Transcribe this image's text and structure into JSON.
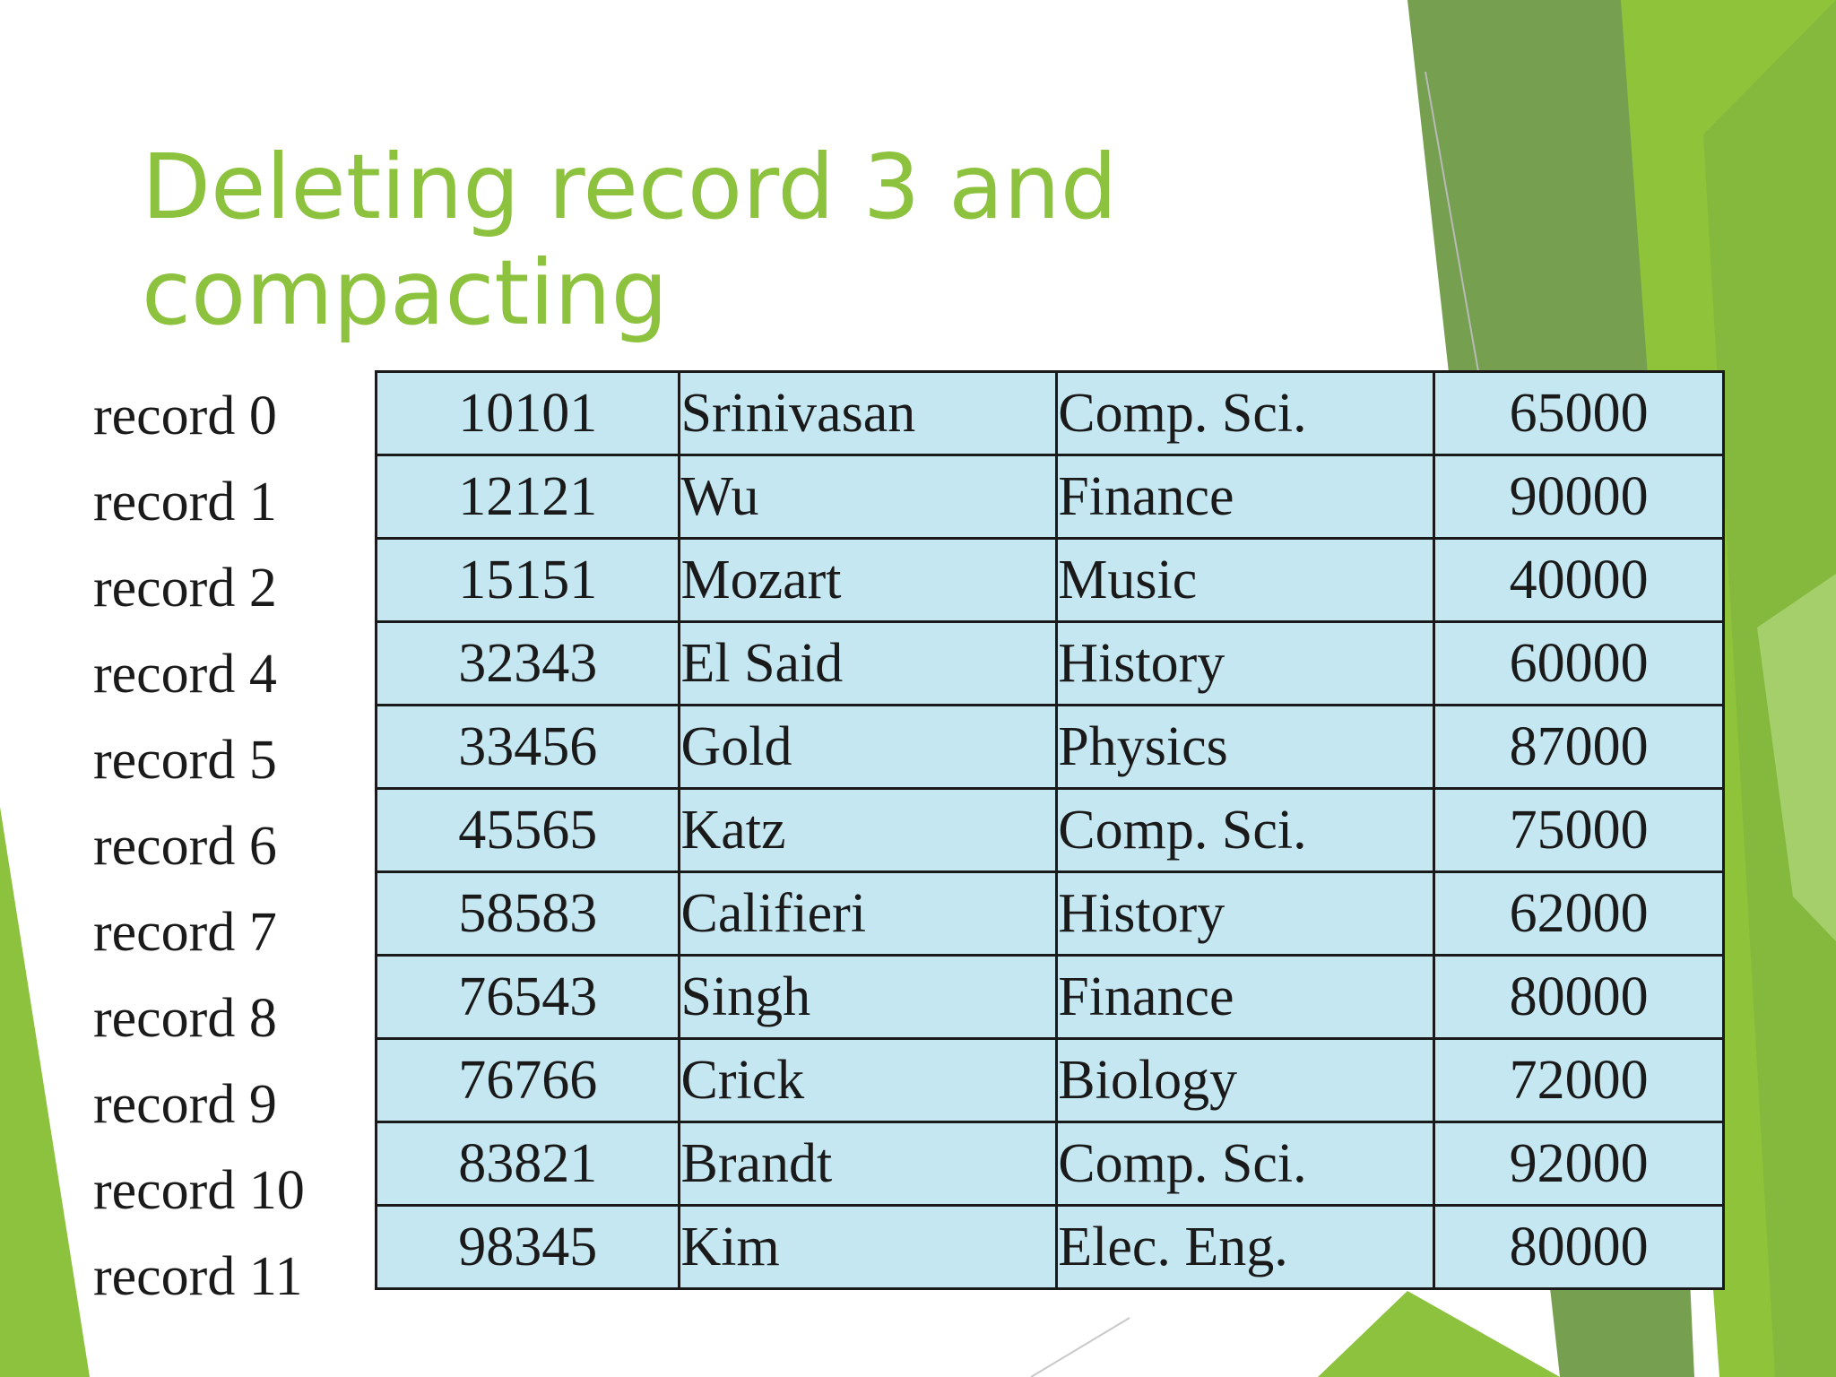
{
  "slide": {
    "title_lines": [
      "Deleting record 3 and",
      "compacting"
    ],
    "accent_color": "#8cc23d"
  },
  "table": {
    "cell_color": "#c5e7f1",
    "rows": [
      {
        "label": "record 0",
        "id": "10101",
        "name": "Srinivasan",
        "dept": "Comp. Sci.",
        "salary": "65000"
      },
      {
        "label": "record 1",
        "id": "12121",
        "name": "Wu",
        "dept": "Finance",
        "salary": "90000"
      },
      {
        "label": "record 2",
        "id": "15151",
        "name": "Mozart",
        "dept": "Music",
        "salary": "40000"
      },
      {
        "label": "record 4",
        "id": "32343",
        "name": "El Said",
        "dept": "History",
        "salary": "60000"
      },
      {
        "label": "record 5",
        "id": "33456",
        "name": "Gold",
        "dept": "Physics",
        "salary": "87000"
      },
      {
        "label": "record 6",
        "id": "45565",
        "name": "Katz",
        "dept": "Comp. Sci.",
        "salary": "75000"
      },
      {
        "label": "record 7",
        "id": "58583",
        "name": "Califieri",
        "dept": "History",
        "salary": "62000"
      },
      {
        "label": "record 8",
        "id": "76543",
        "name": "Singh",
        "dept": "Finance",
        "salary": "80000"
      },
      {
        "label": "record 9",
        "id": "76766",
        "name": "Crick",
        "dept": "Biology",
        "salary": "72000"
      },
      {
        "label": "record 10",
        "id": "83821",
        "name": "Brandt",
        "dept": "Comp. Sci.",
        "salary": "92000"
      },
      {
        "label": "record 11",
        "id": "98345",
        "name": "Kim",
        "dept": "Elec. Eng.",
        "salary": "80000"
      }
    ]
  }
}
